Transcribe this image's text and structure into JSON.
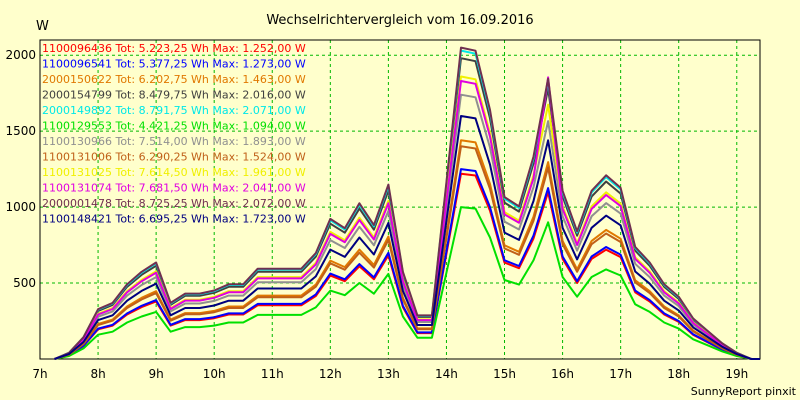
{
  "chart_data": {
    "type": "line",
    "title": "Wechselrichtervergleich vom 16.09.2016",
    "ylabel": "W",
    "footer": "SunnyReport pinxit",
    "ylim": [
      0,
      2100
    ],
    "xlim": [
      7,
      19.4
    ],
    "yticks": [
      500,
      1000,
      1500,
      2000
    ],
    "xticks": [
      {
        "v": 7,
        "label": "7h"
      },
      {
        "v": 8,
        "label": "8h"
      },
      {
        "v": 9,
        "label": "9h"
      },
      {
        "v": 10,
        "label": "10h"
      },
      {
        "v": 11,
        "label": "11h"
      },
      {
        "v": 12,
        "label": "12h"
      },
      {
        "v": 13,
        "label": "13h"
      },
      {
        "v": 14,
        "label": "14h"
      },
      {
        "v": 15,
        "label": "15h"
      },
      {
        "v": 16,
        "label": "16h"
      },
      {
        "v": 17,
        "label": "17h"
      },
      {
        "v": 18,
        "label": "18h"
      },
      {
        "v": 19,
        "label": "19h"
      }
    ],
    "grid": true,
    "x": [
      7.25,
      7.5,
      7.75,
      8.0,
      8.25,
      8.5,
      8.75,
      9.0,
      9.25,
      9.5,
      9.75,
      10.0,
      10.25,
      10.5,
      10.75,
      11.0,
      11.25,
      11.5,
      11.75,
      12.0,
      12.25,
      12.5,
      12.75,
      13.0,
      13.25,
      13.5,
      13.75,
      14.0,
      14.25,
      14.5,
      14.75,
      15.0,
      15.25,
      15.5,
      15.75,
      16.0,
      16.25,
      16.5,
      16.75,
      17.0,
      17.25,
      17.5,
      17.75,
      18.0,
      18.25,
      18.5,
      18.75,
      19.0,
      19.25,
      19.4
    ],
    "base": [
      0,
      0.02,
      0.07,
      0.16,
      0.18,
      0.24,
      0.28,
      0.31,
      0.18,
      0.21,
      0.21,
      0.22,
      0.24,
      0.24,
      0.29,
      0.29,
      0.29,
      0.29,
      0.34,
      0.45,
      0.42,
      0.5,
      0.43,
      0.56,
      0.28,
      0.14,
      0.14,
      0.57,
      1.0,
      0.99,
      0.8,
      0.52,
      0.49,
      0.65,
      0.9,
      0.54,
      0.41,
      0.54,
      0.59,
      0.55,
      0.36,
      0.31,
      0.24,
      0.2,
      0.13,
      0.09,
      0.05,
      0.02,
      0.0,
      0.0
    ],
    "series": [
      {
        "name": "1100096436 Tot: 5.223,25 Wh Max: 1.252,00 W",
        "color": "#ff0000",
        "values": [
          1.22,
          1.22,
          1.22,
          1.22,
          1.22,
          1.22,
          1.22,
          1.22,
          1.22,
          1.22,
          1.22,
          1.22,
          1.22,
          1.22,
          1.22,
          1.22,
          1.22,
          1.22,
          1.22,
          1.22,
          1.22,
          1.22,
          1.22,
          1.22,
          1.22,
          1.22,
          1.22,
          1.22,
          1.22,
          1.22,
          1.22,
          1.22,
          1.22,
          1.22,
          1.22,
          1.22,
          1.22,
          1.22,
          1.22,
          1.22,
          1.22,
          1.22,
          1.22,
          1.22,
          1.22,
          1.22,
          1.22,
          1.22,
          1.22,
          1.22
        ]
      },
      {
        "name": "1100096541 Tot: 5.377,25 Wh Max: 1.273,00 W",
        "color": "#0000ff",
        "values": [
          1.25,
          1.25,
          1.25,
          1.25,
          1.25,
          1.25,
          1.25,
          1.25,
          1.25,
          1.25,
          1.25,
          1.25,
          1.25,
          1.25,
          1.25,
          1.25,
          1.25,
          1.25,
          1.25,
          1.25,
          1.25,
          1.25,
          1.25,
          1.25,
          1.25,
          1.25,
          1.25,
          1.25,
          1.25,
          1.25,
          1.25,
          1.25,
          1.25,
          1.25,
          1.25,
          1.25,
          1.25,
          1.25,
          1.25,
          1.25,
          1.25,
          1.25,
          1.25,
          1.25,
          1.25,
          1.25,
          1.25,
          1.25,
          1.25,
          1.25
        ]
      },
      {
        "name": "2000150622 Tot: 6.202,75 Wh Max: 1.463,00 W",
        "color": "#e07800",
        "values": [
          1.44,
          1.44,
          1.44,
          1.44,
          1.44,
          1.44,
          1.44,
          1.44,
          1.44,
          1.44,
          1.44,
          1.44,
          1.44,
          1.44,
          1.44,
          1.44,
          1.44,
          1.44,
          1.44,
          1.44,
          1.44,
          1.44,
          1.44,
          1.44,
          1.44,
          1.44,
          1.44,
          1.44,
          1.44,
          1.44,
          1.44,
          1.44,
          1.44,
          1.44,
          1.44,
          1.44,
          1.44,
          1.44,
          1.44,
          1.44,
          1.44,
          1.44,
          1.44,
          1.44,
          1.44,
          1.44,
          1.44,
          1.44,
          1.44,
          1.44
        ]
      },
      {
        "name": "2000154799 Tot: 8.479,75 Wh Max: 2.016,00 W",
        "color": "#404040",
        "values": [
          1.98,
          1.98,
          1.98,
          1.98,
          1.98,
          1.98,
          1.98,
          1.98,
          1.98,
          1.98,
          1.98,
          1.98,
          1.98,
          1.98,
          1.98,
          1.98,
          1.98,
          1.98,
          1.98,
          1.98,
          1.98,
          1.98,
          1.98,
          1.98,
          1.98,
          1.98,
          1.98,
          1.98,
          1.98,
          1.98,
          1.98,
          1.98,
          1.98,
          1.98,
          1.98,
          1.98,
          1.98,
          1.98,
          1.98,
          1.98,
          1.98,
          1.98,
          1.98,
          1.98,
          1.98,
          1.98,
          1.98,
          1.98,
          1.98,
          1.98
        ]
      },
      {
        "name": "2000149892 Tot: 8.791,75 Wh Max: 2.071,00 W",
        "color": "#00e8e8",
        "values": [
          2.03,
          2.03,
          2.03,
          2.03,
          2.03,
          2.03,
          2.03,
          2.03,
          2.03,
          2.03,
          2.03,
          2.03,
          2.03,
          2.03,
          2.03,
          2.03,
          2.03,
          2.03,
          2.03,
          2.03,
          2.03,
          2.03,
          2.03,
          2.03,
          2.03,
          2.03,
          2.03,
          2.03,
          2.03,
          2.03,
          2.03,
          2.03,
          2.03,
          2.03,
          2.03,
          2.03,
          2.03,
          2.03,
          2.03,
          2.03,
          2.03,
          2.03,
          2.03,
          2.03,
          2.03,
          2.03,
          2.03,
          2.03,
          2.03,
          2.03
        ]
      },
      {
        "name": "1100129553 Tot: 4.421,25 Wh Max: 1.094,00 W",
        "color": "#00e000",
        "values": [
          1.0,
          1.0,
          1.0,
          1.0,
          1.0,
          1.0,
          1.0,
          1.0,
          1.0,
          1.0,
          1.0,
          1.0,
          1.0,
          1.0,
          1.0,
          1.0,
          1.0,
          1.0,
          1.0,
          1.0,
          1.0,
          1.0,
          1.0,
          1.0,
          1.0,
          1.0,
          1.0,
          1.0,
          1.0,
          1.0,
          1.0,
          1.0,
          1.0,
          1.0,
          1.0,
          1.0,
          1.0,
          1.0,
          1.0,
          1.0,
          1.0,
          1.0,
          1.0,
          1.0,
          1.0,
          1.0,
          1.0,
          1.0,
          1.0,
          1.0
        ]
      },
      {
        "name": "1100130966 Tot: 7.514,00 Wh Max: 1.893,00 W",
        "color": "#909090",
        "values": [
          1.74,
          1.74,
          1.74,
          1.74,
          1.74,
          1.74,
          1.74,
          1.74,
          1.74,
          1.74,
          1.74,
          1.74,
          1.74,
          1.74,
          1.74,
          1.74,
          1.74,
          1.74,
          1.74,
          1.74,
          1.74,
          1.74,
          1.74,
          1.74,
          1.74,
          1.74,
          1.74,
          1.74,
          1.74,
          1.74,
          1.74,
          1.74,
          1.74,
          1.74,
          1.74,
          1.74,
          1.74,
          1.74,
          1.74,
          1.74,
          1.74,
          1.74,
          1.74,
          1.74,
          1.74,
          1.74,
          1.74,
          1.74,
          1.74,
          1.74
        ]
      },
      {
        "name": "1100131006 Tot: 6.290,25 Wh Max: 1.524,00 W",
        "color": "#c06018",
        "values": [
          1.4,
          1.4,
          1.4,
          1.4,
          1.4,
          1.4,
          1.4,
          1.4,
          1.4,
          1.4,
          1.4,
          1.4,
          1.4,
          1.4,
          1.4,
          1.4,
          1.4,
          1.4,
          1.4,
          1.4,
          1.4,
          1.4,
          1.4,
          1.4,
          1.4,
          1.4,
          1.4,
          1.4,
          1.4,
          1.4,
          1.4,
          1.4,
          1.4,
          1.4,
          1.4,
          1.4,
          1.4,
          1.4,
          1.4,
          1.4,
          1.4,
          1.4,
          1.4,
          1.4,
          1.4,
          1.4,
          1.4,
          1.4,
          1.4,
          1.4
        ]
      },
      {
        "name": "1100131025 Tot: 7.614,50 Wh Max: 1.961,00 W",
        "color": "#f0f000",
        "values": [
          1.86,
          1.86,
          1.86,
          1.86,
          1.86,
          1.86,
          1.86,
          1.86,
          1.86,
          1.86,
          1.86,
          1.86,
          1.86,
          1.86,
          1.86,
          1.86,
          1.86,
          1.86,
          1.86,
          1.86,
          1.86,
          1.86,
          1.86,
          1.86,
          1.86,
          1.86,
          1.86,
          1.86,
          1.86,
          1.86,
          1.86,
          1.86,
          1.86,
          1.86,
          1.86,
          1.86,
          1.86,
          1.86,
          1.86,
          1.86,
          1.86,
          1.86,
          1.86,
          1.86,
          1.86,
          1.86,
          1.86,
          1.86,
          1.86,
          1.86
        ]
      },
      {
        "name": "1100131074 Tot: 7.681,50 Wh Max: 2.041,00 W",
        "color": "#e000e0",
        "values": [
          1.83,
          1.83,
          1.83,
          1.83,
          1.83,
          1.83,
          1.83,
          1.83,
          1.83,
          1.83,
          1.83,
          1.83,
          1.83,
          1.83,
          1.83,
          1.83,
          1.83,
          1.83,
          1.83,
          1.83,
          1.83,
          1.83,
          1.83,
          1.83,
          1.83,
          1.83,
          1.83,
          1.83,
          1.83,
          1.83,
          1.83,
          1.83,
          1.83,
          1.83,
          2.06,
          1.83,
          1.83,
          1.83,
          1.83,
          1.83,
          1.83,
          1.83,
          1.83,
          1.83,
          1.83,
          1.83,
          1.83,
          1.83,
          1.83,
          1.83
        ]
      },
      {
        "name": "2000001478 Tot: 8.725,25 Wh Max: 2.072,00 W",
        "color": "#703050",
        "values": [
          2.05,
          2.05,
          2.05,
          2.05,
          2.05,
          2.05,
          2.05,
          2.05,
          2.05,
          2.05,
          2.05,
          2.05,
          2.05,
          2.05,
          2.05,
          2.05,
          2.05,
          2.05,
          2.05,
          2.05,
          2.05,
          2.05,
          2.05,
          2.05,
          2.05,
          2.05,
          2.05,
          2.05,
          2.05,
          2.05,
          2.05,
          2.05,
          2.05,
          2.05,
          2.05,
          2.05,
          2.05,
          2.05,
          2.05,
          2.05,
          2.05,
          2.05,
          2.05,
          2.05,
          2.05,
          2.05,
          2.05,
          2.05,
          2.05,
          2.05
        ]
      },
      {
        "name": "1100148421 Tot: 6.695,25 Wh Max: 1.723,00 W",
        "color": "#000080",
        "values": [
          1.6,
          1.6,
          1.6,
          1.6,
          1.6,
          1.6,
          1.6,
          1.6,
          1.6,
          1.6,
          1.6,
          1.6,
          1.6,
          1.6,
          1.6,
          1.6,
          1.6,
          1.6,
          1.6,
          1.6,
          1.6,
          1.6,
          1.6,
          1.6,
          1.6,
          1.6,
          1.6,
          1.6,
          1.6,
          1.6,
          1.6,
          1.6,
          1.6,
          1.6,
          1.6,
          1.6,
          1.6,
          1.6,
          1.6,
          1.6,
          1.6,
          1.6,
          1.6,
          1.6,
          1.6,
          1.6,
          1.6,
          1.6,
          1.6,
          1.6
        ]
      }
    ]
  }
}
